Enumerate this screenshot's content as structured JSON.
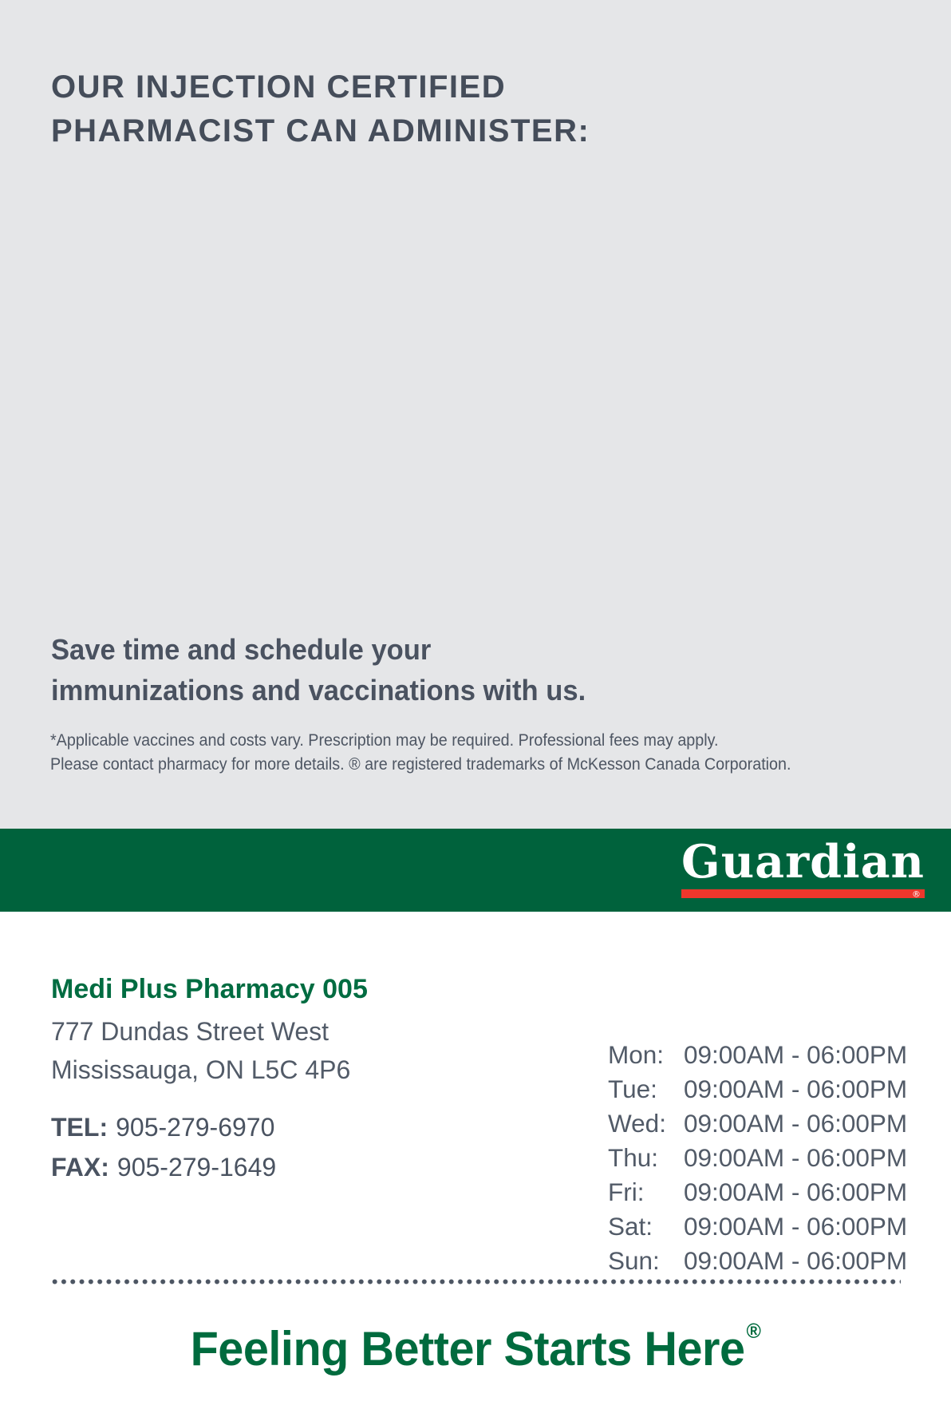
{
  "promo": {
    "heading_line1": "OUR INJECTION CERTIFIED",
    "heading_line2": "PHARMACIST CAN ADMINISTER:",
    "subheading_line1": "Save time and schedule your",
    "subheading_line2": "immunizations and vaccinations with us.",
    "disclaimer_line1": "*Applicable vaccines and costs vary. Prescription may be required. Professional fees may apply.",
    "disclaimer_line2": "Please contact pharmacy for more details. ® are registered trademarks of McKesson Canada Corporation."
  },
  "brand": {
    "wordmark": "Guardian",
    "registered_mark": "®",
    "banner_color": "#00623c",
    "underline_color": "#ee372c",
    "brand_green": "#006c41"
  },
  "store": {
    "name": "Medi Plus Pharmacy 005",
    "address_line1": "777 Dundas Street West",
    "address_line2": "Mississauga, ON L5C 4P6",
    "tel_label": "TEL:",
    "tel_number": "905-279-6970",
    "fax_label": "FAX:",
    "fax_number": "905-279-1649"
  },
  "hours": {
    "rows": [
      {
        "day": "Mon:",
        "time": "09:00AM - 06:00PM"
      },
      {
        "day": "Tue:",
        "time": "09:00AM - 06:00PM"
      },
      {
        "day": "Wed:",
        "time": "09:00AM - 06:00PM"
      },
      {
        "day": "Thu:",
        "time": "09:00AM - 06:00PM"
      },
      {
        "day": "Fri:",
        "time": "09:00AM - 06:00PM"
      },
      {
        "day": "Sat:",
        "time": "09:00AM - 06:00PM"
      },
      {
        "day": "Sun:",
        "time": "09:00AM - 06:00PM"
      }
    ]
  },
  "tagline": {
    "text": "Feeling Better Starts Here",
    "registered_mark": "®"
  }
}
